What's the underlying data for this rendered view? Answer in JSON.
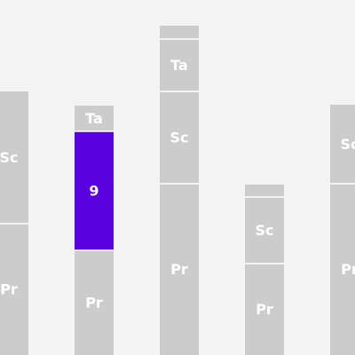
{
  "chart_data": {
    "type": "bar",
    "stacked": true,
    "categories": [
      "",
      "",
      "",
      "",
      ""
    ],
    "stack_order": [
      "Pr",
      "Sc",
      "Ta",
      "top"
    ],
    "stacks": [
      {
        "segments": [
          {
            "label": "Pr",
            "value": 148
          },
          {
            "label": "Sc",
            "value": 149
          }
        ]
      },
      {
        "segments": [
          {
            "label": "Pr",
            "value": 118
          },
          {
            "label": "9",
            "value": 134,
            "highlight": true
          },
          {
            "label": "Ta",
            "value": 29
          }
        ]
      },
      {
        "segments": [
          {
            "label": "Pr",
            "value": 193
          },
          {
            "label": "Sc",
            "value": 104
          },
          {
            "label": "Ta",
            "value": 59
          },
          {
            "label": "",
            "value": 15
          }
        ]
      },
      {
        "segments": [
          {
            "label": "Pr",
            "value": 103
          },
          {
            "label": "Sc",
            "value": 75
          },
          {
            "label": "",
            "value": 14
          }
        ]
      },
      {
        "segments": [
          {
            "label": "Pr",
            "value": 193
          },
          {
            "label": "Sc",
            "value": 89
          }
        ]
      }
    ],
    "ylim": [
      0,
      400
    ],
    "colors": {
      "segment": "#cccccc",
      "highlight": "#5a00df",
      "divider": "#ffffff",
      "background": "#f3f3f3",
      "label": "#ffffff"
    },
    "grid": false,
    "legend": "none"
  }
}
